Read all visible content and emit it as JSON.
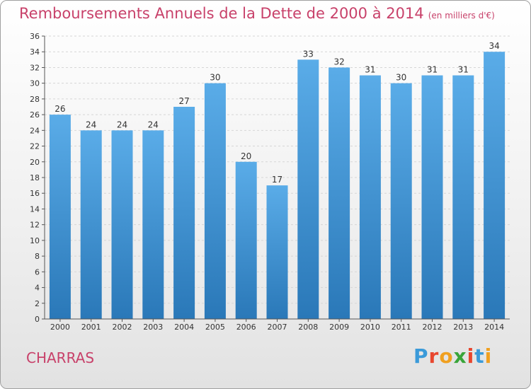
{
  "chart_data": {
    "type": "bar",
    "title": "Remboursements Annuels de la Dette de 2000 à 2014",
    "unit_note": "(en milliers d'€)",
    "categories": [
      "2000",
      "2001",
      "2002",
      "2003",
      "2004",
      "2005",
      "2006",
      "2007",
      "2008",
      "2009",
      "2010",
      "2011",
      "2012",
      "2013",
      "2014"
    ],
    "values": [
      26,
      24,
      24,
      24,
      27,
      30,
      20,
      17,
      33,
      32,
      31,
      30,
      31,
      31,
      34
    ],
    "ylim": [
      0,
      36
    ],
    "yticks": [
      0,
      2,
      4,
      6,
      8,
      10,
      12,
      14,
      16,
      18,
      20,
      22,
      24,
      26,
      28,
      30,
      32,
      34,
      36
    ],
    "grid": true,
    "xlabel": "",
    "ylabel": ""
  },
  "footer": {
    "town": "CHARRAS",
    "logo_letters": [
      "P",
      "r",
      "o",
      "x",
      "i",
      "t",
      "i"
    ],
    "logo_colors": [
      "#3a9ad9",
      "#e8462e",
      "#f0a020",
      "#3aa53a",
      "#e8462e",
      "#3a9ad9",
      "#f0a020"
    ]
  },
  "colors": {
    "bar_top": "#5aace8",
    "bar_bottom": "#2a78b8",
    "title": "#c8416a"
  }
}
